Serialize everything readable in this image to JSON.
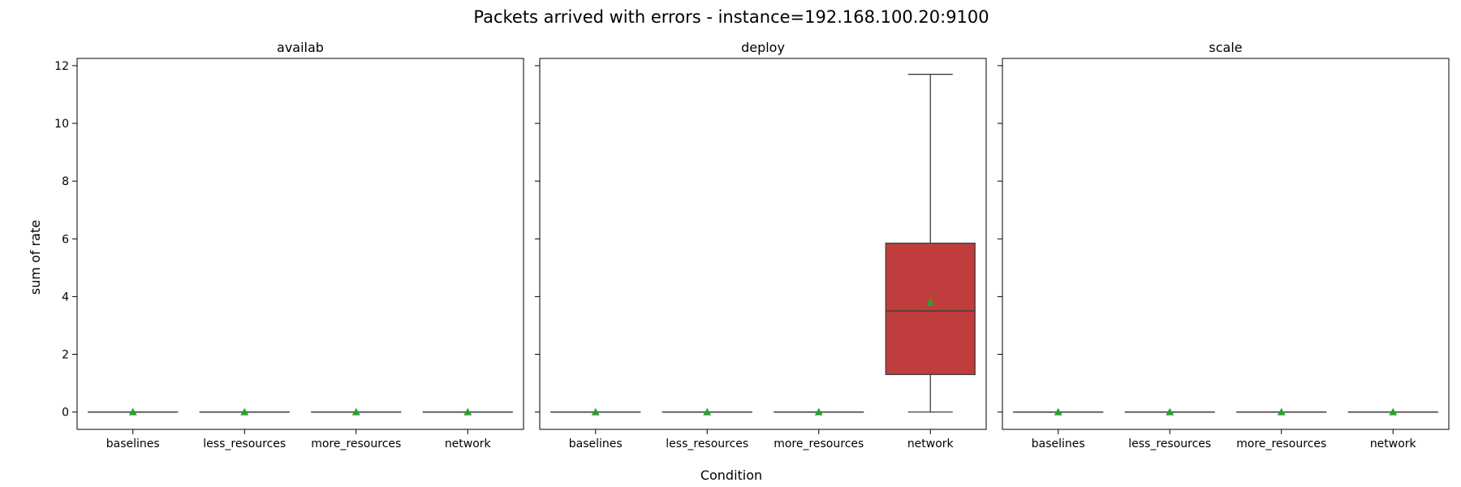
{
  "chart_data": {
    "type": "box",
    "title": "Packets arrived with errors - instance=192.168.100.20:9100",
    "xlabel": "Condition",
    "ylabel": "sum of rate",
    "ylim": [
      -0.6,
      12.25
    ],
    "yticks": [
      0,
      2,
      4,
      6,
      8,
      10,
      12
    ],
    "categories": [
      "baselines",
      "less_resources",
      "more_resources",
      "network"
    ],
    "colors": {
      "box_fill": "#c03d3e",
      "whisker": "#3f3f3f",
      "mean_marker": "#2ca02c",
      "axes": "#000000"
    },
    "panels": [
      {
        "title": "availab",
        "boxes": [
          {
            "category": "baselines",
            "min": 0,
            "q1": 0,
            "median": 0,
            "q3": 0,
            "max": 0,
            "mean": 0
          },
          {
            "category": "less_resources",
            "min": 0,
            "q1": 0,
            "median": 0,
            "q3": 0,
            "max": 0,
            "mean": 0
          },
          {
            "category": "more_resources",
            "min": 0,
            "q1": 0,
            "median": 0,
            "q3": 0,
            "max": 0,
            "mean": 0
          },
          {
            "category": "network",
            "min": 0,
            "q1": 0,
            "median": 0,
            "q3": 0,
            "max": 0,
            "mean": 0
          }
        ]
      },
      {
        "title": "deploy",
        "boxes": [
          {
            "category": "baselines",
            "min": 0,
            "q1": 0,
            "median": 0,
            "q3": 0,
            "max": 0,
            "mean": 0
          },
          {
            "category": "less_resources",
            "min": 0,
            "q1": 0,
            "median": 0,
            "q3": 0,
            "max": 0,
            "mean": 0
          },
          {
            "category": "more_resources",
            "min": 0,
            "q1": 0,
            "median": 0,
            "q3": 0,
            "max": 0,
            "mean": 0
          },
          {
            "category": "network",
            "min": 0,
            "q1": 1.3,
            "median": 3.5,
            "q3": 5.85,
            "max": 11.7,
            "mean": 3.8
          }
        ]
      },
      {
        "title": "scale",
        "boxes": [
          {
            "category": "baselines",
            "min": 0,
            "q1": 0,
            "median": 0,
            "q3": 0,
            "max": 0,
            "mean": 0
          },
          {
            "category": "less_resources",
            "min": 0,
            "q1": 0,
            "median": 0,
            "q3": 0,
            "max": 0,
            "mean": 0
          },
          {
            "category": "more_resources",
            "min": 0,
            "q1": 0,
            "median": 0,
            "q3": 0,
            "max": 0,
            "mean": 0
          },
          {
            "category": "network",
            "min": 0,
            "q1": 0,
            "median": 0,
            "q3": 0,
            "max": 0,
            "mean": 0
          }
        ]
      }
    ]
  }
}
